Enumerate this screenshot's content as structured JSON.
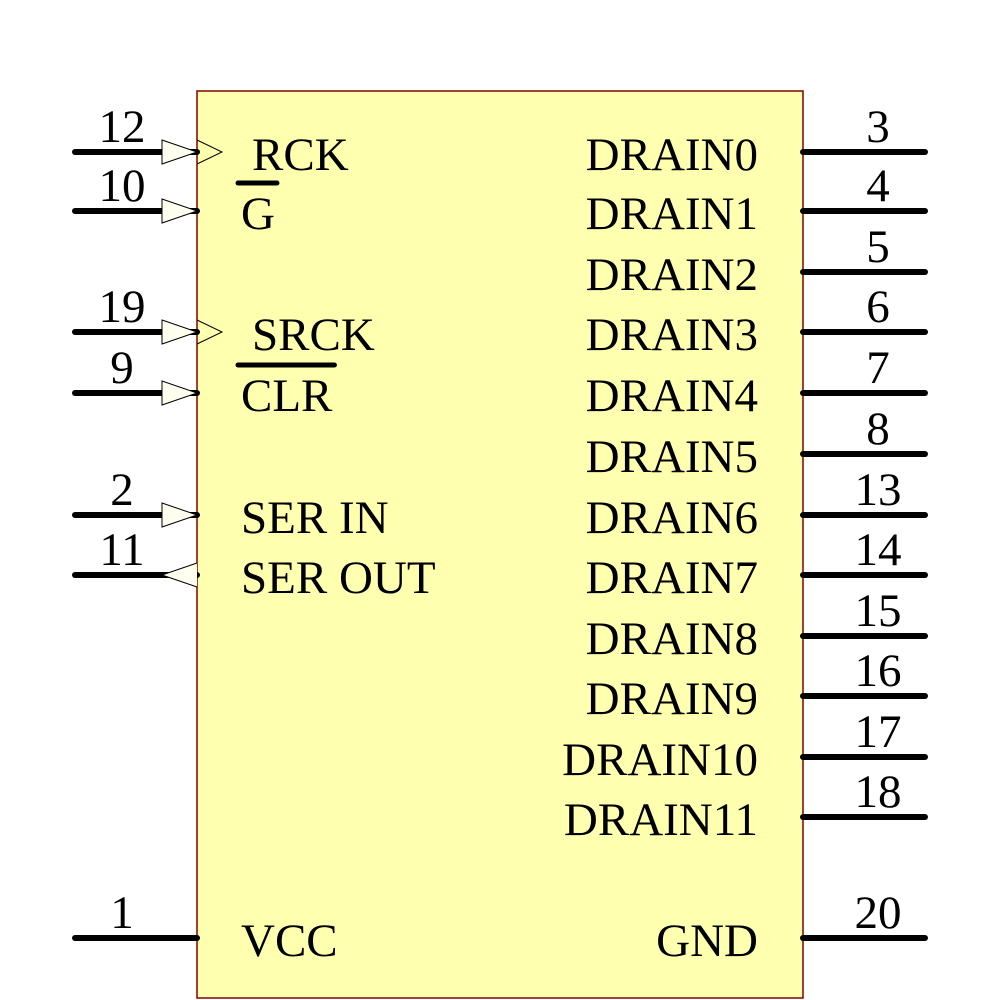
{
  "component": {
    "body_fill": "#ffffb0",
    "body_stroke": "#800000",
    "left_pins": [
      {
        "number": "12",
        "label": "RCK",
        "clock": true,
        "direction": "in",
        "overbar": false
      },
      {
        "number": "10",
        "label": "G",
        "clock": false,
        "direction": "in",
        "overbar": true
      },
      {
        "number": "19",
        "label": "SRCK",
        "clock": true,
        "direction": "in",
        "overbar": false
      },
      {
        "number": "9",
        "label": "CLR",
        "clock": false,
        "direction": "in",
        "overbar": true
      },
      {
        "number": "2",
        "label": "SER IN",
        "clock": false,
        "direction": "in",
        "overbar": false
      },
      {
        "number": "11",
        "label": "SER OUT",
        "clock": false,
        "direction": "out",
        "overbar": false
      },
      {
        "number": "1",
        "label": "VCC",
        "clock": false,
        "direction": "power",
        "overbar": false
      }
    ],
    "right_pins": [
      {
        "number": "3",
        "label": "DRAIN0"
      },
      {
        "number": "4",
        "label": "DRAIN1"
      },
      {
        "number": "5",
        "label": "DRAIN2"
      },
      {
        "number": "6",
        "label": "DRAIN3"
      },
      {
        "number": "7",
        "label": "DRAIN4"
      },
      {
        "number": "8",
        "label": "DRAIN5"
      },
      {
        "number": "13",
        "label": "DRAIN6"
      },
      {
        "number": "14",
        "label": "DRAIN7"
      },
      {
        "number": "15",
        "label": "DRAIN8"
      },
      {
        "number": "16",
        "label": "DRAIN9"
      },
      {
        "number": "17",
        "label": "DRAIN10"
      },
      {
        "number": "18",
        "label": "DRAIN11"
      },
      {
        "number": "20",
        "label": "GND"
      }
    ]
  }
}
